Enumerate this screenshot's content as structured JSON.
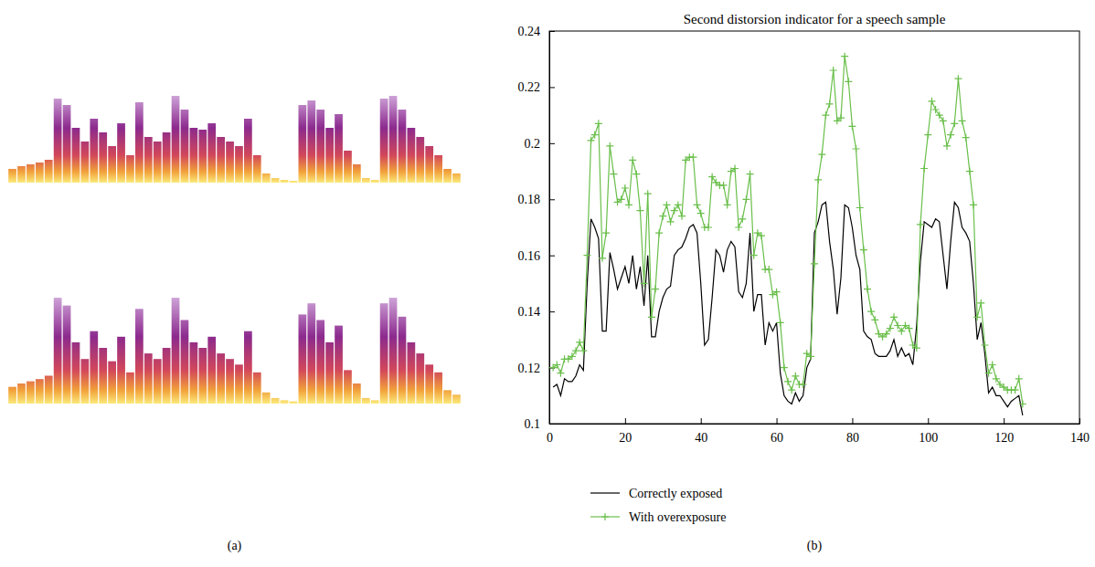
{
  "chart_data": [
    {
      "type": "spectrogram",
      "panel_label": "(a)",
      "ylim": [
        0,
        100
      ],
      "tick_labels": false,
      "series": [
        {
          "values": [
            15,
            18,
            20,
            22,
            25,
            92,
            85,
            60,
            45,
            70,
            55,
            40,
            65,
            30,
            88,
            50,
            45,
            55,
            95,
            80,
            60,
            58,
            65,
            50,
            45,
            40,
            70,
            30,
            10,
            5,
            3,
            2,
            85,
            90,
            80,
            60,
            75,
            35,
            20,
            5,
            3,
            92,
            95,
            80,
            60,
            50,
            40,
            30,
            15,
            10
          ]
        },
        {
          "values": [
            15,
            18,
            20,
            22,
            25,
            95,
            88,
            55,
            40,
            65,
            50,
            38,
            60,
            28,
            85,
            45,
            40,
            50,
            95,
            75,
            55,
            50,
            60,
            45,
            40,
            35,
            65,
            28,
            10,
            5,
            3,
            2,
            80,
            90,
            75,
            55,
            70,
            30,
            18,
            5,
            3,
            90,
            95,
            78,
            55,
            45,
            35,
            28,
            12,
            8
          ]
        }
      ]
    },
    {
      "type": "line",
      "panel_label": "(b)",
      "title": "Second distorsion indicator for a speech sample",
      "x": [
        1,
        2,
        3,
        4,
        5,
        6,
        7,
        8,
        9,
        10,
        11,
        12,
        13,
        14,
        15,
        16,
        17,
        18,
        19,
        20,
        21,
        22,
        23,
        24,
        25,
        26,
        27,
        28,
        29,
        30,
        31,
        32,
        33,
        34,
        35,
        36,
        37,
        38,
        39,
        40,
        41,
        42,
        43,
        44,
        45,
        46,
        47,
        48,
        49,
        50,
        51,
        52,
        53,
        54,
        55,
        56,
        57,
        58,
        59,
        60,
        61,
        62,
        63,
        64,
        65,
        66,
        67,
        68,
        69,
        70,
        71,
        72,
        73,
        74,
        75,
        76,
        77,
        78,
        79,
        80,
        81,
        82,
        83,
        84,
        85,
        86,
        87,
        88,
        89,
        90,
        91,
        92,
        93,
        94,
        95,
        96,
        97,
        98,
        99,
        100,
        101,
        102,
        103,
        104,
        105,
        106,
        107,
        108,
        109,
        110,
        111,
        112,
        113,
        114,
        115,
        116,
        117,
        118,
        119,
        120,
        121,
        122,
        123,
        124,
        125
      ],
      "xlim": [
        0,
        140
      ],
      "xticks": [
        0,
        20,
        40,
        60,
        80,
        100,
        120,
        140
      ],
      "ylim": [
        0.1,
        0.24
      ],
      "yticks": [
        0.1,
        0.12,
        0.14,
        0.16,
        0.18,
        0.2,
        0.22,
        0.24
      ],
      "legend": "below",
      "series": [
        {
          "name": "Correctly exposed",
          "color": "#000000",
          "line_style": "solid",
          "values": [
            0.113,
            0.114,
            0.11,
            0.116,
            0.115,
            0.115,
            0.117,
            0.121,
            0.119,
            0.15,
            0.173,
            0.17,
            0.166,
            0.133,
            0.133,
            0.161,
            0.155,
            0.148,
            0.152,
            0.156,
            0.15,
            0.16,
            0.148,
            0.156,
            0.142,
            0.16,
            0.131,
            0.131,
            0.14,
            0.145,
            0.148,
            0.149,
            0.16,
            0.162,
            0.163,
            0.166,
            0.17,
            0.171,
            0.168,
            0.15,
            0.128,
            0.13,
            0.145,
            0.162,
            0.16,
            0.154,
            0.162,
            0.165,
            0.163,
            0.147,
            0.145,
            0.15,
            0.168,
            0.14,
            0.146,
            0.146,
            0.128,
            0.136,
            0.133,
            0.136,
            0.118,
            0.11,
            0.108,
            0.107,
            0.111,
            0.108,
            0.11,
            0.12,
            0.123,
            0.168,
            0.172,
            0.178,
            0.179,
            0.165,
            0.155,
            0.139,
            0.152,
            0.178,
            0.177,
            0.17,
            0.16,
            0.155,
            0.133,
            0.131,
            0.13,
            0.125,
            0.124,
            0.124,
            0.124,
            0.126,
            0.13,
            0.124,
            0.127,
            0.124,
            0.125,
            0.121,
            0.135,
            0.158,
            0.172,
            0.171,
            0.17,
            0.173,
            0.172,
            0.16,
            0.148,
            0.165,
            0.179,
            0.177,
            0.17,
            0.168,
            0.165,
            0.15,
            0.13,
            0.136,
            0.125,
            0.111,
            0.113,
            0.11,
            0.11,
            0.108,
            0.106,
            0.108,
            0.109,
            0.11,
            0.103
          ]
        },
        {
          "name": "With overexposure",
          "color": "#6abf4b",
          "line_style": "solid",
          "marker": "plus",
          "values": [
            0.12,
            0.121,
            0.118,
            0.123,
            0.123,
            0.124,
            0.126,
            0.129,
            0.126,
            0.16,
            0.201,
            0.203,
            0.207,
            0.159,
            0.168,
            0.199,
            0.189,
            0.179,
            0.18,
            0.184,
            0.178,
            0.194,
            0.189,
            0.176,
            0.15,
            0.182,
            0.138,
            0.148,
            0.168,
            0.174,
            0.178,
            0.172,
            0.176,
            0.178,
            0.174,
            0.194,
            0.195,
            0.195,
            0.178,
            0.175,
            0.17,
            0.17,
            0.188,
            0.186,
            0.185,
            0.185,
            0.178,
            0.19,
            0.191,
            0.17,
            0.173,
            0.18,
            0.189,
            0.16,
            0.168,
            0.167,
            0.155,
            0.155,
            0.146,
            0.147,
            0.136,
            0.12,
            0.115,
            0.112,
            0.117,
            0.114,
            0.114,
            0.125,
            0.124,
            0.157,
            0.187,
            0.196,
            0.21,
            0.214,
            0.226,
            0.208,
            0.209,
            0.231,
            0.222,
            0.206,
            0.198,
            0.177,
            0.162,
            0.148,
            0.14,
            0.137,
            0.132,
            0.131,
            0.132,
            0.134,
            0.138,
            0.135,
            0.133,
            0.135,
            0.134,
            0.128,
            0.127,
            0.171,
            0.191,
            0.203,
            0.215,
            0.212,
            0.21,
            0.208,
            0.199,
            0.203,
            0.207,
            0.223,
            0.208,
            0.202,
            0.19,
            0.178,
            0.138,
            0.143,
            0.128,
            0.118,
            0.121,
            0.116,
            0.114,
            0.113,
            0.112,
            0.112,
            0.112,
            0.116,
            0.107
          ]
        }
      ]
    }
  ]
}
